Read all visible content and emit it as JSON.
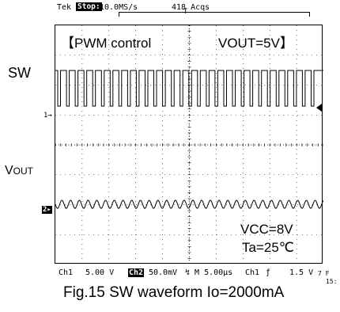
{
  "header": {
    "brand": "Tek",
    "status": "Stop:",
    "sample_rate": "10.0MS/s",
    "acquisitions": "418 Acqs",
    "trigger_marker": "T"
  },
  "annotations": {
    "mode_left": "【PWM  control",
    "mode_right": "VOUT=5V】",
    "vcc": "VCC=8V",
    "ta": "Ta=25℃"
  },
  "side_labels": {
    "sw": "SW",
    "vout_main": "V",
    "vout_sub": "OUT",
    "ch1_marker": "1→",
    "ch2_marker": "2▸"
  },
  "footer": {
    "ch1_name": "Ch1",
    "ch1_scale": "5.00 V",
    "ch2_name": "Ch2",
    "ch2_scale": "50.0mV",
    "bw": "↯ M 5.00µs",
    "trig_src": "Ch1",
    "trig_slope": "ƒ",
    "trig_level": "1.5 V",
    "edge_1": "7 F",
    "edge_2": "15:"
  },
  "caption": "Fig.15 SW waveform Io=2000mA"
}
